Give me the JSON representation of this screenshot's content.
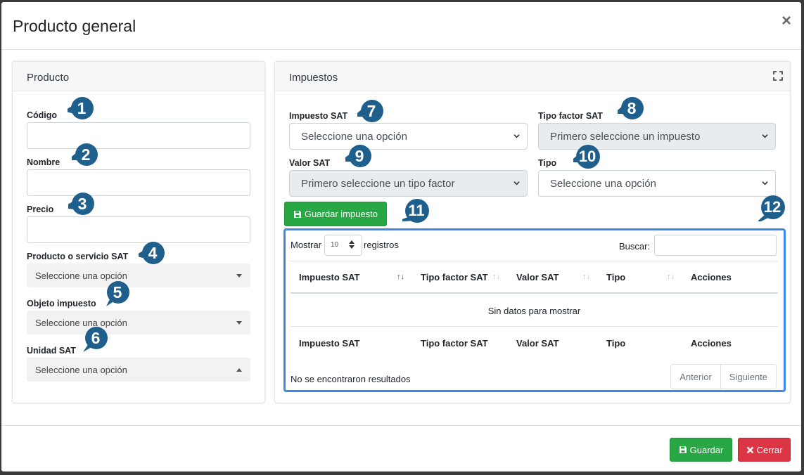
{
  "modal": {
    "title": "Producto general",
    "close": "×"
  },
  "producto": {
    "header": "Producto",
    "codigo_label": "Código",
    "nombre_label": "Nombre",
    "precio_label": "Precio",
    "producto_servicio_label": "Producto o servicio SAT",
    "producto_servicio_value": "Seleccione una opción",
    "objeto_impuesto_label": "Objeto impuesto",
    "objeto_impuesto_value": "Seleccione una opción",
    "unidad_sat_label": "Unidad SAT",
    "unidad_sat_value": "Seleccione una opción"
  },
  "impuestos": {
    "header": "Impuestos",
    "impuesto_sat_label": "Impuesto SAT",
    "impuesto_sat_value": "Seleccione una opción",
    "tipo_factor_label": "Tipo factor SAT",
    "tipo_factor_value": "Primero seleccione un impuesto",
    "valor_sat_label": "Valor SAT",
    "valor_sat_value": "Primero seleccione un tipo factor",
    "tipo_label": "Tipo",
    "tipo_value": "Seleccione una opción",
    "guardar_impuesto": "Guardar impuesto"
  },
  "table": {
    "mostrar": "Mostrar",
    "page_size": "10",
    "registros": "registros",
    "buscar": "Buscar:",
    "columns": [
      "Impuesto SAT",
      "Tipo factor SAT",
      "Valor SAT",
      "Tipo",
      "Acciones"
    ],
    "empty": "Sin datos para mostrar",
    "info": "No se encontraron resultados",
    "prev": "Anterior",
    "next": "Siguiente"
  },
  "footer": {
    "guardar": "Guardar",
    "cerrar": "Cerrar"
  },
  "badges": [
    "1",
    "2",
    "3",
    "4",
    "5",
    "6",
    "7",
    "8",
    "9",
    "10",
    "11",
    "12"
  ],
  "colors": {
    "badge": "#1f5f8b",
    "green": "#28a745",
    "red": "#dc3545",
    "highlight": "#3b8ae6"
  }
}
